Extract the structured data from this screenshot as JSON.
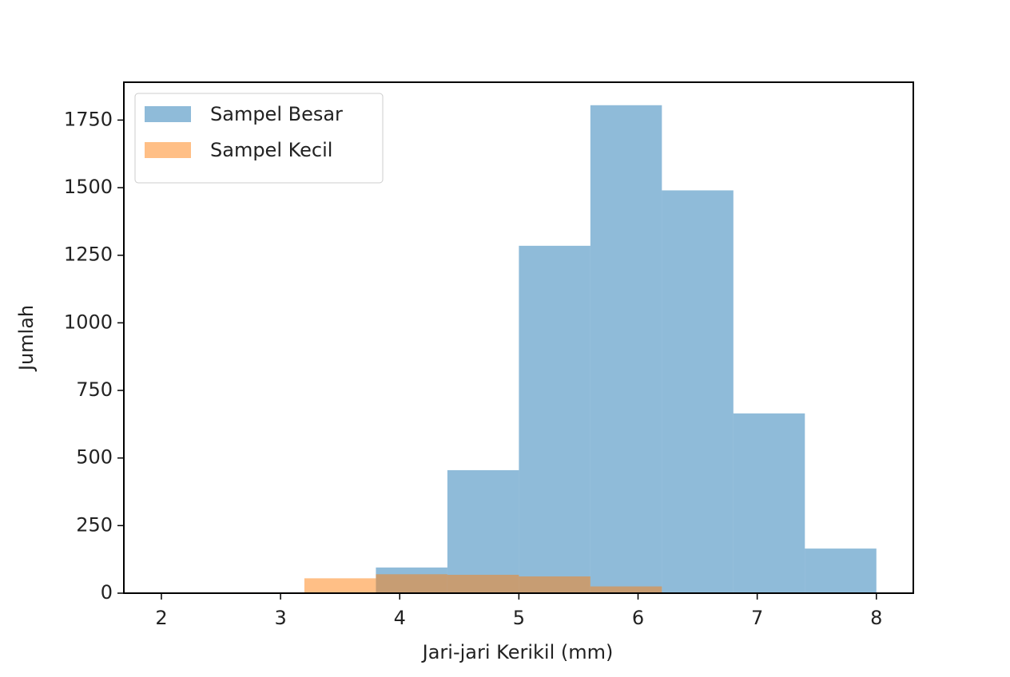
{
  "chart_data": {
    "type": "histogram",
    "xlabel": "Jari-jari Kerikil (mm)",
    "ylabel": "Jumlah",
    "bins": [
      2.0,
      2.6,
      3.2,
      3.8,
      4.4,
      5.0,
      5.6,
      6.2,
      6.8,
      7.4,
      8.0
    ],
    "series": [
      {
        "name": "Sampel Besar",
        "color": "#1f77b4",
        "values": [
          0,
          0,
          0,
          95,
          455,
          1285,
          1805,
          1490,
          665,
          165
        ]
      },
      {
        "name": "Sampel Kecil",
        "color": "#ff7f0e",
        "values": [
          0,
          3,
          55,
          70,
          68,
          62,
          25,
          0,
          0,
          0
        ]
      }
    ],
    "alpha": 0.5,
    "xlim": [
      1.685,
      8.31
    ],
    "ylim": [
      0,
      1890
    ],
    "xticks": [
      2,
      3,
      4,
      5,
      6,
      7,
      8
    ],
    "yticks": [
      0,
      250,
      500,
      750,
      1000,
      1250,
      1500,
      1750
    ],
    "legend": "upper left",
    "grid": false
  }
}
